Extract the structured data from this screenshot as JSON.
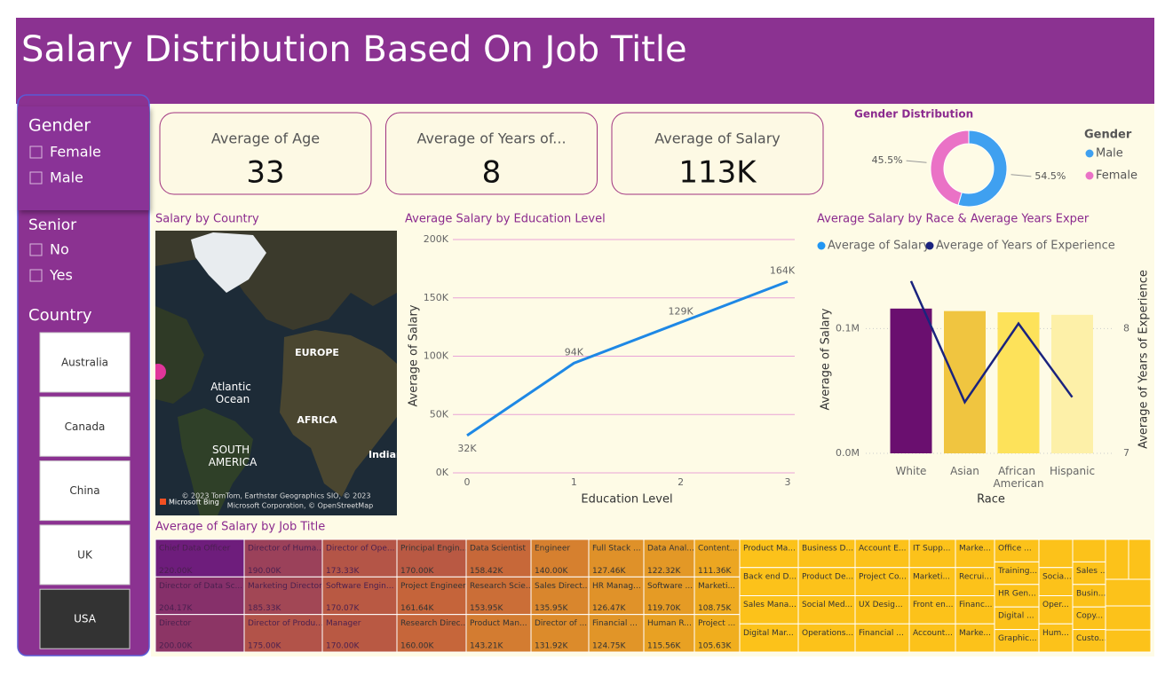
{
  "header": {
    "title": "Salary Distribution Based On Job Title"
  },
  "slicers": {
    "gender": {
      "title": "Gender",
      "options": [
        "Female",
        "Male"
      ]
    },
    "senior": {
      "title": "Senior",
      "options": [
        "No",
        "Yes"
      ]
    },
    "country": {
      "title": "Country",
      "options": [
        "Australia",
        "Canada",
        "China",
        "UK",
        "USA"
      ],
      "selected": 4
    }
  },
  "cards": [
    {
      "label": "Average of Age",
      "value": "33"
    },
    {
      "label": "Average of Years of...",
      "value": "8"
    },
    {
      "label": "Average of Salary",
      "value": "113K"
    }
  ],
  "map": {
    "title": "Salary by Country",
    "labels": [
      "EUROPE",
      "Atlantic Ocean",
      "AFRICA",
      "SOUTH AMERICA",
      "Indian Ocean"
    ],
    "attribution": [
      "© 2023 TomTom, Earthstar Geographics SIO, © 2023",
      "Microsoft Corporation, © OpenStreetMap"
    ],
    "brand": "Microsoft Bing"
  },
  "chart_data": [
    {
      "type": "donut",
      "title": "Gender Distribution",
      "legend_title": "Gender",
      "categories": [
        "Male",
        "Female"
      ],
      "values": [
        54.5,
        45.5
      ],
      "value_labels": [
        "54.5%",
        "45.5%"
      ],
      "colors": [
        "#3fa0f0",
        "#ea72c6"
      ],
      "legend": "right"
    },
    {
      "type": "line",
      "title": "Average Salary by Education Level",
      "x_label": "Education Level",
      "y_label": "Average of Salary",
      "x": [
        0,
        1,
        2,
        3
      ],
      "values": [
        32000,
        94000,
        129000,
        164000
      ],
      "value_labels": [
        "32K",
        "94K",
        "129K",
        "164K"
      ],
      "color": "#1e88e5",
      "xlim": [
        0,
        3
      ],
      "xticks": [
        0,
        1,
        2,
        3
      ],
      "ylim": [
        0,
        200000
      ],
      "yticks": [
        {
          "value": 0,
          "label": "0K"
        },
        {
          "value": 50000,
          "label": "50K"
        },
        {
          "value": 100000,
          "label": "100K"
        },
        {
          "value": 150000,
          "label": "150K"
        },
        {
          "value": 200000,
          "label": "200K"
        }
      ],
      "grid": true
    },
    {
      "type": "combo",
      "title": "Average Salary by Race & Average Years Exper",
      "x_label": "Race",
      "y_label": "Average of Salary",
      "y2_label": "Average of Years of Experience",
      "categories": [
        "White",
        "Asian",
        "African American",
        "Hispanic"
      ],
      "series": [
        {
          "name": "Average of Salary",
          "color": "#2196f3",
          "bar_colors": [
            "#6a0f6f",
            "#f0c540",
            "#fde25a",
            "#fdf0a8"
          ],
          "values": [
            116000,
            114000,
            113000,
            111000
          ]
        },
        {
          "name": "Average of Years of Experience",
          "color": "#1a237e",
          "axis": "y2",
          "values": [
            8.38,
            7.41,
            8.04,
            7.45
          ]
        }
      ],
      "ylim": [
        0,
        150000
      ],
      "yticks": [
        {
          "value": 0,
          "label": "0.0M"
        },
        {
          "value": 100000,
          "label": "0.1M"
        }
      ],
      "y2lim": [
        7,
        8.5
      ],
      "y2ticks": [
        7,
        8
      ],
      "legend": "top"
    },
    {
      "type": "treemap",
      "title": "Average of Salary by Job Title",
      "labels": [
        "Chief Data Officer",
        "Director of Data Sc...",
        "Director",
        "Director of Huma...",
        "Marketing Director",
        "Director of Produ...",
        "Director of Ope...",
        "Software Engin...",
        "Manager",
        "Principal Engin...",
        "Project Engineer",
        "Research Direc...",
        "Data Scientist",
        "Research Scie...",
        "Product Man...",
        "Engineer",
        "Sales Direct...",
        "Director of ...",
        "Full Stack ...",
        "HR Manag...",
        "Financial ...",
        "Data Anal...",
        "Software ...",
        "Human R...",
        "Content...",
        "Marketi...",
        "Project ...",
        "Product Ma...",
        "Back end D...",
        "Sales Mana...",
        "Digital Mar...",
        "Business D...",
        "Product De...",
        "Social Med...",
        "Operations...",
        "Account E...",
        "Project Co...",
        "UX Desig...",
        "Financial ...",
        "IT Supp...",
        "Marketi...",
        "Front en...",
        "Account...",
        "Marke...",
        "Recrui...",
        "Financ...",
        "Marke...",
        "Office ...",
        "Training...",
        "HR Gen...",
        "Digital ...",
        "Graphic...",
        null,
        "Socia...",
        "Oper...",
        "Hum...",
        null,
        "Sales ...",
        "Busin...",
        "Copy...",
        "Custo..."
      ],
      "values": [
        220000,
        204170,
        200000,
        190000,
        185330,
        175000,
        173330,
        170070,
        170000,
        170000,
        161640,
        160000,
        158420,
        153950,
        143210,
        140000,
        135950,
        131920,
        127460,
        126470,
        124750,
        122320,
        119700,
        115560,
        111360,
        108750,
        105630,
        null,
        null,
        null,
        null,
        null,
        null,
        null,
        null,
        null,
        null,
        null,
        null,
        null,
        null,
        null,
        null,
        null,
        null,
        null,
        null,
        null,
        null,
        null,
        null,
        null,
        null,
        null,
        null,
        null,
        null,
        null,
        null,
        null,
        null
      ],
      "value_labels": [
        "220.00K",
        "204.17K",
        "200.00K",
        "190.00K",
        "185.33K",
        "175.00K",
        "173.33K",
        "170.07K",
        "170.00K",
        "170.00K",
        "161.64K",
        "160.00K",
        "158.42K",
        "153.95K",
        "143.21K",
        "140.00K",
        "135.95K",
        "131.92K",
        "127.46K",
        "126.47K",
        "124.75K",
        "122.32K",
        "119.70K",
        "115.56K",
        "111.36K",
        "108.75K",
        "105.63K",
        null,
        null,
        null,
        null,
        null,
        null,
        null,
        null,
        null,
        null,
        null,
        null,
        null,
        null,
        null,
        null,
        null,
        null,
        null,
        null,
        null,
        null,
        null,
        null,
        null,
        null,
        null,
        null,
        null,
        null,
        null,
        null,
        null,
        null
      ],
      "colors": [
        "#f0ae1e",
        "#c4623b",
        "#6e1d7c"
      ],
      "null_color": "#fcc21a"
    }
  ]
}
